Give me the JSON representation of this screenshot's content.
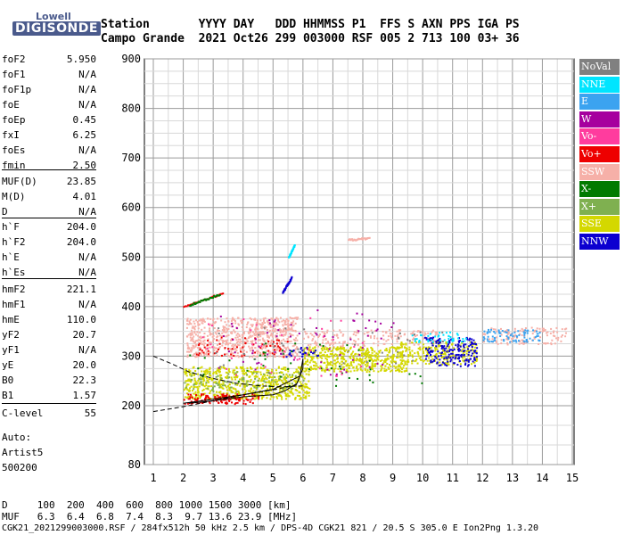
{
  "logo": {
    "top": "Lowell",
    "bottom": "DIGISONDE"
  },
  "header": {
    "row1": "Station       YYYY DAY   DDD HHMMSS P1  FFS S AXN PPS IGA PS",
    "row2": "Campo Grande  2021 Oct26 299 003000 RSF 005 2 713 100 03+ 36"
  },
  "params": [
    {
      "name": "foF2",
      "value": "5.950"
    },
    {
      "name": "foF1",
      "value": "N/A"
    },
    {
      "name": "foF1p",
      "value": "N/A"
    },
    {
      "name": "foE",
      "value": "N/A"
    },
    {
      "name": "foEp",
      "value": "0.45"
    },
    {
      "name": "fxI",
      "value": "6.25"
    },
    {
      "name": "foEs",
      "value": "N/A"
    },
    {
      "name": "fmin",
      "value": "2.50"
    },
    {
      "name": "MUF(D)",
      "value": "23.85"
    },
    {
      "name": "M(D)",
      "value": "4.01"
    },
    {
      "name": "D",
      "value": "N/A"
    },
    {
      "name": "h`F",
      "value": "204.0"
    },
    {
      "name": "h`F2",
      "value": "204.0"
    },
    {
      "name": "h`E",
      "value": "N/A"
    },
    {
      "name": "h`Es",
      "value": "N/A"
    },
    {
      "name": "hmF2",
      "value": "221.1"
    },
    {
      "name": "hmF1",
      "value": "N/A"
    },
    {
      "name": "hmE",
      "value": "110.0"
    },
    {
      "name": "yF2",
      "value": "20.7"
    },
    {
      "name": "yF1",
      "value": "N/A"
    },
    {
      "name": "yE",
      "value": "20.0"
    },
    {
      "name": "B0",
      "value": "22.3"
    },
    {
      "name": "B1",
      "value": "1.57"
    },
    {
      "name": "C-level",
      "value": "55"
    }
  ],
  "auto": {
    "line1": "Auto:",
    "line2": "Artist5",
    "line3": "500200"
  },
  "footer": {
    "d_row": "D     100  200  400  600  800 1000 1500 3000 [km]",
    "muf_row": "MUF   6.3  6.4  6.8  7.4  8.3  9.7 13.6 23.9 [MHz]",
    "file_row": "CGK21_2021299003000.RSF / 284fx512h 50 kHz 2.5 km / DPS-4D CGK21 821 / 20.5 S 305.0 E Ion2Png 1.3.20"
  },
  "legend": [
    {
      "label": "NoVal",
      "color": "#808080"
    },
    {
      "label": "NNE",
      "color": "#00e5ff"
    },
    {
      "label": "E",
      "color": "#3ba3f0"
    },
    {
      "label": "W",
      "color": "#a6009e"
    },
    {
      "label": "Vo-",
      "color": "#ff3c9e"
    },
    {
      "label": "Vo+",
      "color": "#ee0000"
    },
    {
      "label": "SSW",
      "color": "#f6b0a8"
    },
    {
      "label": "X-",
      "color": "#007a00"
    },
    {
      "label": "X+",
      "color": "#7fb050"
    },
    {
      "label": "SSE",
      "color": "#d4d800"
    },
    {
      "label": "NNW",
      "color": "#0c00d0"
    }
  ],
  "chart_data": {
    "type": "scatter",
    "xlim": [
      1,
      15
    ],
    "ylim": [
      80,
      900
    ],
    "xticks": [
      1,
      2,
      3,
      4,
      5,
      6,
      7,
      8,
      9,
      10,
      11,
      12,
      13,
      14,
      15
    ],
    "yticks": [
      80,
      200,
      300,
      400,
      500,
      600,
      700,
      800,
      900
    ],
    "grid": true,
    "blobs": [
      {
        "color": "#f6b0a8",
        "x": [
          2.1,
          5.8
        ],
        "y": [
          300,
          380
        ],
        "n": 700
      },
      {
        "color": "#f6b0a8",
        "x": [
          6.0,
          10.5
        ],
        "y": [
          320,
          355
        ],
        "n": 180
      },
      {
        "color": "#f6b0a8",
        "x": [
          12.0,
          14.8
        ],
        "y": [
          325,
          360
        ],
        "n": 120
      },
      {
        "color": "#d4d800",
        "x": [
          2.0,
          6.2
        ],
        "y": [
          215,
          280
        ],
        "n": 650
      },
      {
        "color": "#d4d800",
        "x": [
          6.0,
          9.5
        ],
        "y": [
          270,
          320
        ],
        "n": 480
      },
      {
        "color": "#d4d800",
        "x": [
          9.2,
          11.8
        ],
        "y": [
          285,
          330
        ],
        "n": 220
      },
      {
        "color": "#ee0000",
        "x": [
          2.0,
          4.5
        ],
        "y": [
          205,
          225
        ],
        "n": 120
      },
      {
        "color": "#ee0000",
        "x": [
          2.4,
          5.5
        ],
        "y": [
          300,
          340
        ],
        "n": 60
      },
      {
        "color": "#0c00d0",
        "x": [
          10.0,
          11.8
        ],
        "y": [
          280,
          340
        ],
        "n": 180
      },
      {
        "color": "#0c00d0",
        "x": [
          5.2,
          6.5
        ],
        "y": [
          300,
          320
        ],
        "n": 25
      },
      {
        "color": "#00e5ff",
        "x": [
          9.5,
          11.5
        ],
        "y": [
          330,
          350
        ],
        "n": 40
      },
      {
        "color": "#3ba3f0",
        "x": [
          12.0,
          14.0
        ],
        "y": [
          330,
          355
        ],
        "n": 80
      },
      {
        "color": "#a6009e",
        "x": [
          3.0,
          9.0
        ],
        "y": [
          260,
          400
        ],
        "n": 70
      },
      {
        "color": "#7fb050",
        "x": [
          2.0,
          6.0
        ],
        "y": [
          230,
          270
        ],
        "n": 90
      },
      {
        "color": "#007a00",
        "x": [
          2.0,
          10.0
        ],
        "y": [
          240,
          330
        ],
        "n": 50
      },
      {
        "color": "#ff3c9e",
        "x": [
          2.5,
          8.0
        ],
        "y": [
          260,
          380
        ],
        "n": 40
      },
      {
        "color": "#808080",
        "x": [
          3.0,
          11.0
        ],
        "y": [
          280,
          360
        ],
        "n": 40
      }
    ],
    "streaks": [
      {
        "color": "#ee0000",
        "x": [
          2.0,
          3.3
        ],
        "y": [
          402,
          428
        ]
      },
      {
        "color": "#007a00",
        "x": [
          2.2,
          3.2
        ],
        "y": [
          405,
          426
        ]
      },
      {
        "color": "#0c00d0",
        "x": [
          5.3,
          5.6
        ],
        "y": [
          430,
          460
        ]
      },
      {
        "color": "#00e5ff",
        "x": [
          5.5,
          5.7
        ],
        "y": [
          500,
          525
        ]
      },
      {
        "color": "#f6b0a8",
        "x": [
          7.5,
          8.2
        ],
        "y": [
          536,
          540
        ]
      }
    ],
    "curves": [
      {
        "style": "dashed",
        "x": [
          1.0,
          1.6,
          2.2,
          3.0,
          3.8,
          4.6,
          5.3,
          6.0
        ],
        "y": [
          300,
          285,
          268,
          255,
          245,
          240,
          238,
          240
        ]
      },
      {
        "style": "dashed",
        "x": [
          1.0,
          2.0,
          3.0,
          4.0,
          5.0,
          5.8
        ],
        "y": [
          188,
          198,
          210,
          222,
          232,
          242
        ]
      },
      {
        "style": "solid",
        "x": [
          2.0,
          3.0,
          4.0,
          5.0,
          5.9,
          6.0,
          6.0,
          5.8,
          5.4,
          5.0,
          4.0,
          3.0,
          2.2
        ],
        "y": [
          205,
          213,
          222,
          233,
          260,
          295,
          275,
          245,
          230,
          222,
          218,
          210,
          205
        ]
      }
    ]
  }
}
